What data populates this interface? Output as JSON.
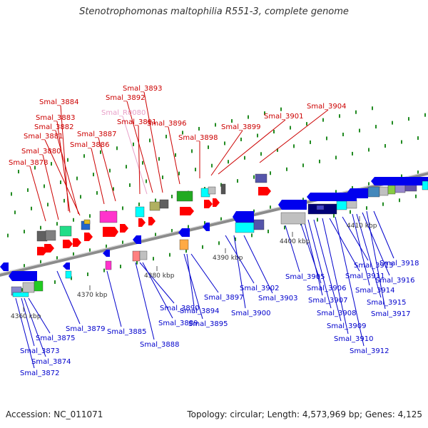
{
  "title": "Stenotrophomonas maltophilia R551-3, complete genome",
  "footer": {
    "accession": "Accession: NC_011071",
    "summary": "Topology: circular; Length: 4,573,969 bp; Genes: 4,125"
  },
  "colors": {
    "forward_label": "#cc0000",
    "reverse_label": "#0000cc",
    "rna_label": "#e8a0c8",
    "backbone": "#8c8c8c",
    "tick": "#228b22"
  },
  "kbp_labels": [
    "4360 kbp",
    "4370 kbp",
    "4380 kbp",
    "4390 kbp",
    "4400 kbp",
    "4410 kbp"
  ],
  "forward_labels": [
    "Smal_3884",
    "Smal_3883",
    "Smal_3882",
    "Smal_3881",
    "Smal_3880",
    "Smal_3878",
    "Smal_3893",
    "Smal_3892",
    "Smal_R0080",
    "Smal_3891",
    "Smal_3887",
    "Smal_3886",
    "Smal_3896",
    "Smal_3898",
    "Smal_3899",
    "Smal_3901",
    "Smal_3904"
  ],
  "reverse_labels": [
    "Smal_3879",
    "Smal_3875",
    "Smal_3873",
    "Smal_3874",
    "Smal_3872",
    "Smal_3885",
    "Smal_3890",
    "Smal_3889",
    "Smal_3888",
    "Smal_3897",
    "Smal_3894",
    "Smal_3895",
    "Smal_3902",
    "Smal_3900",
    "Smal_3903",
    "Smal_3905",
    "Smal_3906",
    "Smal_3907",
    "Smal_3908",
    "Smal_3909",
    "Smal_3910",
    "Smal_3911",
    "Smal_3912",
    "Smal_3913",
    "Smal_3914",
    "Smal_3915",
    "Smal_3916",
    "Smal_3917",
    "Smal_3918"
  ]
}
